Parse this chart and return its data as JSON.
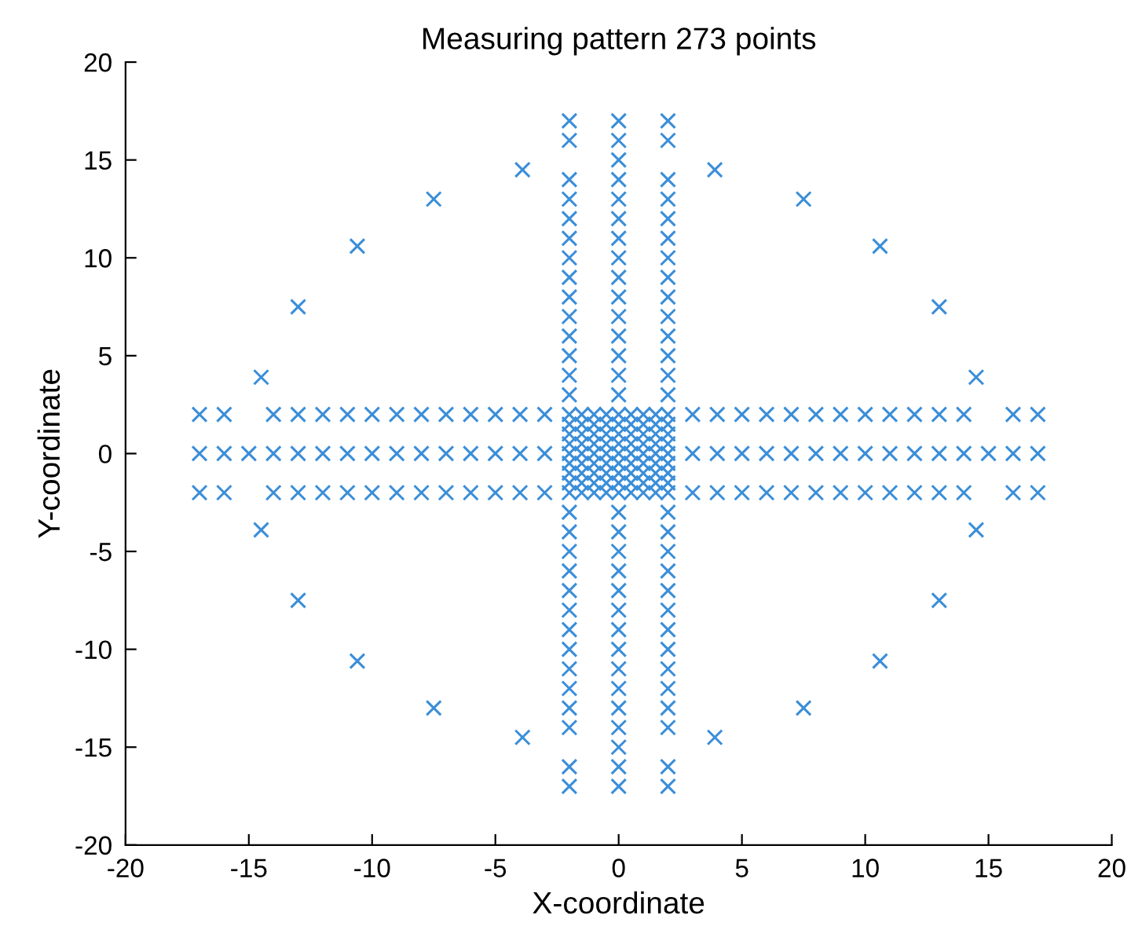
{
  "chart_data": {
    "type": "scatter",
    "title": "Measuring pattern 273 points",
    "xlabel": "X-coordinate",
    "ylabel": "Y-coordinate",
    "xlim": [
      -20,
      20
    ],
    "ylim": [
      -20,
      20
    ],
    "xticks": [
      -20,
      -15,
      -10,
      -5,
      0,
      5,
      10,
      15,
      20
    ],
    "yticks": [
      -20,
      -15,
      -10,
      -5,
      0,
      5,
      10,
      15,
      20
    ],
    "marker": "cross",
    "series": [
      {
        "color": "#3b8ed8",
        "x": [
          -2,
          -1.5,
          -1,
          -0.5,
          0,
          0.5,
          1,
          1.5,
          2,
          -2,
          -1.5,
          -1,
          -0.5,
          0,
          0.5,
          1,
          1.5,
          2,
          -2,
          -1.5,
          -1,
          -0.5,
          0,
          0.5,
          1,
          1.5,
          2,
          -2,
          -1.5,
          -1,
          -0.5,
          0,
          0.5,
          1,
          1.5,
          2,
          -2,
          -1.5,
          -1,
          -0.5,
          0,
          0.5,
          1,
          1.5,
          2,
          -2,
          -1.5,
          -1,
          -0.5,
          0,
          0.5,
          1,
          1.5,
          2,
          -2,
          -1.5,
          -1,
          -0.5,
          0,
          0.5,
          1,
          1.5,
          2,
          -2,
          -1.5,
          -1,
          -0.5,
          0,
          0.5,
          1,
          1.5,
          2,
          -2,
          -1.5,
          -1,
          -0.5,
          0,
          0.5,
          1,
          1.5,
          2
        ],
        "values": [
          -2,
          -2,
          -2,
          -2,
          -2,
          -2,
          -2,
          -2,
          -2,
          -1.5,
          -1.5,
          -1.5,
          -1.5,
          -1.5,
          -1.5,
          -1.5,
          -1.5,
          -1.5,
          -1,
          -1,
          -1,
          -1,
          -1,
          -1,
          -1,
          -1,
          -1,
          -0.5,
          -0.5,
          -0.5,
          -0.5,
          -0.5,
          -0.5,
          -0.5,
          -0.5,
          -0.5,
          0,
          0,
          0,
          0,
          0,
          0,
          0,
          0,
          0,
          0.5,
          0.5,
          0.5,
          0.5,
          0.5,
          0.5,
          0.5,
          0.5,
          0.5,
          1,
          1,
          1,
          1,
          1,
          1,
          1,
          1,
          1,
          1.5,
          1.5,
          1.5,
          1.5,
          1.5,
          1.5,
          1.5,
          1.5,
          1.5,
          2,
          2,
          2,
          2,
          2,
          2,
          2,
          2,
          2
        ]
      },
      {
        "color": "#3b8ed8",
        "x": [
          -17,
          -16,
          -15,
          -14,
          -13,
          -12,
          -11,
          -10,
          -9,
          -8,
          -7,
          -6,
          -5,
          -4,
          -3,
          3,
          4,
          5,
          6,
          7,
          8,
          9,
          10,
          11,
          12,
          13,
          14,
          15,
          16,
          17
        ],
        "values": [
          0,
          0,
          0,
          0,
          0,
          0,
          0,
          0,
          0,
          0,
          0,
          0,
          0,
          0,
          0,
          0,
          0,
          0,
          0,
          0,
          0,
          0,
          0,
          0,
          0,
          0,
          0,
          0,
          0,
          0
        ]
      },
      {
        "color": "#3b8ed8",
        "x": [
          -17,
          -16,
          -14,
          -13,
          -12,
          -11,
          -10,
          -9,
          -8,
          -7,
          -6,
          -5,
          -4,
          -3,
          3,
          4,
          5,
          6,
          7,
          8,
          9,
          10,
          11,
          12,
          13,
          14,
          16,
          17
        ],
        "values": [
          2,
          2,
          2,
          2,
          2,
          2,
          2,
          2,
          2,
          2,
          2,
          2,
          2,
          2,
          2,
          2,
          2,
          2,
          2,
          2,
          2,
          2,
          2,
          2,
          2,
          2,
          2,
          2
        ]
      },
      {
        "color": "#3b8ed8",
        "x": [
          -17,
          -16,
          -14,
          -13,
          -12,
          -11,
          -10,
          -9,
          -8,
          -7,
          -6,
          -5,
          -4,
          -3,
          3,
          4,
          5,
          6,
          7,
          8,
          9,
          10,
          11,
          12,
          13,
          14,
          16,
          17
        ],
        "values": [
          -2,
          -2,
          -2,
          -2,
          -2,
          -2,
          -2,
          -2,
          -2,
          -2,
          -2,
          -2,
          -2,
          -2,
          -2,
          -2,
          -2,
          -2,
          -2,
          -2,
          -2,
          -2,
          -2,
          -2,
          -2,
          -2,
          -2,
          -2
        ]
      },
      {
        "color": "#3b8ed8",
        "x": [
          0,
          0,
          0,
          0,
          0,
          0,
          0,
          0,
          0,
          0,
          0,
          0,
          0,
          0,
          0,
          0,
          0,
          0,
          0,
          0,
          0,
          0,
          0,
          0,
          0,
          0,
          0,
          0,
          0,
          0
        ],
        "values": [
          -17,
          -16,
          -15,
          -14,
          -13,
          -12,
          -11,
          -10,
          -9,
          -8,
          -7,
          -6,
          -5,
          -4,
          -3,
          3,
          4,
          5,
          6,
          7,
          8,
          9,
          10,
          11,
          12,
          13,
          14,
          15,
          16,
          17
        ]
      },
      {
        "color": "#3b8ed8",
        "x": [
          2,
          2,
          2,
          2,
          2,
          2,
          2,
          2,
          2,
          2,
          2,
          2,
          2,
          2,
          2,
          2,
          2,
          2,
          2,
          2,
          2,
          2,
          2,
          2,
          2,
          2,
          2,
          2
        ],
        "values": [
          -17,
          -16,
          -14,
          -13,
          -12,
          -11,
          -10,
          -9,
          -8,
          -7,
          -6,
          -5,
          -4,
          -3,
          3,
          4,
          5,
          6,
          7,
          8,
          9,
          10,
          11,
          12,
          13,
          14,
          16,
          17
        ]
      },
      {
        "color": "#3b8ed8",
        "x": [
          -2,
          -2,
          -2,
          -2,
          -2,
          -2,
          -2,
          -2,
          -2,
          -2,
          -2,
          -2,
          -2,
          -2,
          -2,
          -2,
          -2,
          -2,
          -2,
          -2,
          -2,
          -2,
          -2,
          -2,
          -2,
          -2,
          -2,
          -2
        ],
        "values": [
          -17,
          -16,
          -14,
          -13,
          -12,
          -11,
          -10,
          -9,
          -8,
          -7,
          -6,
          -5,
          -4,
          -3,
          3,
          4,
          5,
          6,
          7,
          8,
          9,
          10,
          11,
          12,
          13,
          14,
          16,
          17
        ]
      },
      {
        "color": "#3b8ed8",
        "x": [
          14.5,
          13,
          10.6,
          7.5,
          3.9,
          -3.9,
          -7.5,
          -10.6,
          -13,
          -14.5,
          -14.5,
          -13,
          -10.6,
          -7.5,
          -3.9,
          3.9,
          7.5,
          10.6,
          13,
          14.5
        ],
        "values": [
          3.9,
          7.5,
          10.6,
          13,
          14.5,
          14.5,
          13,
          10.6,
          7.5,
          3.9,
          -3.9,
          -7.5,
          -10.6,
          -13,
          -14.5,
          -14.5,
          -13,
          -10.6,
          -7.5,
          -3.9
        ]
      }
    ]
  }
}
